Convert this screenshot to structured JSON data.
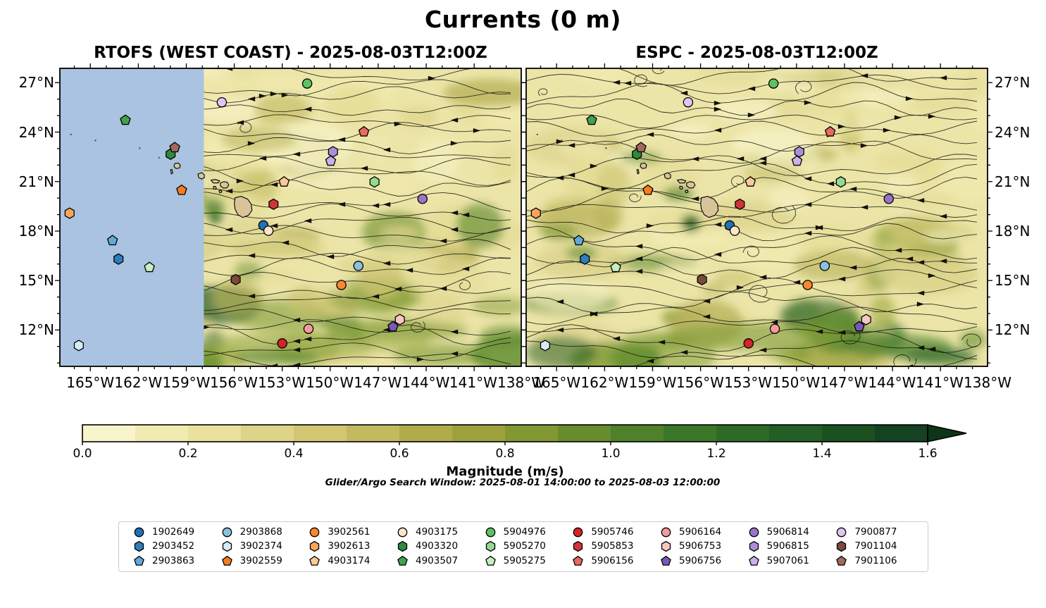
{
  "figure": {
    "title": "Currents (0 m)",
    "subtitle": "Glider/Argo Search Window: 2025-08-01 14:00:00 to 2025-08-03 12:00:00"
  },
  "chart_data": {
    "type": "scatter",
    "title": "Currents (0 m)",
    "description": "Two-panel comparison of surface current magnitude with streamlines and Argo/glider float positions",
    "panels": [
      {
        "id": "rtofs",
        "title": "RTOFS (WEST COAST) - 2025-08-03T12:00Z",
        "nodata_region": {
          "note": "no model coverage west of ~157.5W",
          "fx_end": 0.312,
          "color": "#a9c3e1"
        }
      },
      {
        "id": "espc",
        "title": "ESPC - 2025-08-03T12:00Z"
      }
    ],
    "x_axis": {
      "labels": [
        "165°W",
        "162°W",
        "159°W",
        "156°W",
        "153°W",
        "150°W",
        "147°W",
        "144°W",
        "141°W",
        "138°W"
      ],
      "fx": [
        0.066,
        0.17,
        0.274,
        0.377,
        0.481,
        0.585,
        0.689,
        0.793,
        0.896,
        1.0
      ]
    },
    "y_axis": {
      "labels": [
        "27°N",
        "24°N",
        "21°N",
        "18°N",
        "15°N",
        "12°N"
      ],
      "fy": [
        0.048,
        0.214,
        0.38,
        0.545,
        0.711,
        0.877
      ]
    },
    "colorbar": {
      "label": "Magnitude (m/s)",
      "range": [
        0.0,
        1.6
      ],
      "tick_labels": [
        "0.0",
        "0.2",
        "0.4",
        "0.6",
        "0.8",
        "1.0",
        "1.2",
        "1.4",
        "1.6"
      ],
      "segment_colors": [
        "#f8f4cb",
        "#f1ebb2",
        "#e9e19c",
        "#ded488",
        "#d2c672",
        "#c3b95e",
        "#b1ac4b",
        "#9da23d",
        "#839733",
        "#688c2e",
        "#4f812b",
        "#3c7629",
        "#2e6a27",
        "#235e25",
        "#1b5021",
        "#154220"
      ],
      "extend_color": "#0e3517"
    },
    "floats": [
      {
        "id": "1902649",
        "shape": "circle",
        "color": "#2171b5",
        "fx": 0.441,
        "fy": 0.527
      },
      {
        "id": "2903452",
        "shape": "hexagon",
        "color": "#2e7ebc",
        "fx": 0.127,
        "fy": 0.64
      },
      {
        "id": "2903863",
        "shape": "pentagon",
        "color": "#63a8d8",
        "fx": 0.114,
        "fy": 0.578
      },
      {
        "id": "2903868",
        "shape": "circle",
        "color": "#8bc0e2",
        "fx": 0.647,
        "fy": 0.663
      },
      {
        "id": "3902374",
        "shape": "hexagon",
        "color": "#d6ebf7",
        "fx": 0.041,
        "fy": 0.93
      },
      {
        "id": "3902559",
        "shape": "pentagon",
        "color": "#f57d1f",
        "fx": 0.264,
        "fy": 0.409
      },
      {
        "id": "3902561",
        "shape": "circle",
        "color": "#f8882f",
        "fx": 0.61,
        "fy": 0.727
      },
      {
        "id": "3902613",
        "shape": "hexagon",
        "color": "#fba55c",
        "fx": 0.021,
        "fy": 0.486
      },
      {
        "id": "4903174",
        "shape": "pentagon",
        "color": "#fdc998",
        "fx": 0.486,
        "fy": 0.381
      },
      {
        "id": "4903175",
        "shape": "circle",
        "color": "#fde5c9",
        "fx": 0.452,
        "fy": 0.545
      },
      {
        "id": "4903320",
        "shape": "hexagon",
        "color": "#2d8b3c",
        "fx": 0.24,
        "fy": 0.288
      },
      {
        "id": "4903507",
        "shape": "pentagon",
        "color": "#41a24e",
        "fx": 0.142,
        "fy": 0.174
      },
      {
        "id": "5904976",
        "shape": "circle",
        "color": "#5ec262",
        "fx": 0.536,
        "fy": 0.051
      },
      {
        "id": "5905270",
        "shape": "hexagon",
        "color": "#94d98f",
        "fx": 0.682,
        "fy": 0.381
      },
      {
        "id": "5905275",
        "shape": "pentagon",
        "color": "#c6eec1",
        "fx": 0.194,
        "fy": 0.668
      },
      {
        "id": "5905746",
        "shape": "circle",
        "color": "#d4232b",
        "fx": 0.482,
        "fy": 0.923
      },
      {
        "id": "5905853",
        "shape": "hexagon",
        "color": "#cf3538",
        "fx": 0.463,
        "fy": 0.456
      },
      {
        "id": "5906156",
        "shape": "pentagon",
        "color": "#e66a5e",
        "fx": 0.659,
        "fy": 0.213
      },
      {
        "id": "5906164",
        "shape": "circle",
        "color": "#f49a9c",
        "fx": 0.539,
        "fy": 0.874
      },
      {
        "id": "5906753",
        "shape": "hexagon",
        "color": "#f9c6c6",
        "fx": 0.737,
        "fy": 0.843
      },
      {
        "id": "5906756",
        "shape": "pentagon",
        "color": "#7a58b5",
        "fx": 0.722,
        "fy": 0.867
      },
      {
        "id": "5906814",
        "shape": "circle",
        "color": "#9b74c8",
        "fx": 0.786,
        "fy": 0.438
      },
      {
        "id": "5906815",
        "shape": "hexagon",
        "color": "#ad8ed6",
        "fx": 0.592,
        "fy": 0.28
      },
      {
        "id": "5907061",
        "shape": "pentagon",
        "color": "#cbb0e9",
        "fx": 0.587,
        "fy": 0.311
      },
      {
        "id": "7900877",
        "shape": "circle",
        "color": "#dfc5f3",
        "fx": 0.351,
        "fy": 0.114
      },
      {
        "id": "7901104",
        "shape": "hexagon",
        "color": "#7b4a3c",
        "fx": 0.381,
        "fy": 0.709
      },
      {
        "id": "7901106",
        "shape": "pentagon",
        "color": "#a26a5b",
        "fx": 0.249,
        "fy": 0.266
      }
    ]
  }
}
